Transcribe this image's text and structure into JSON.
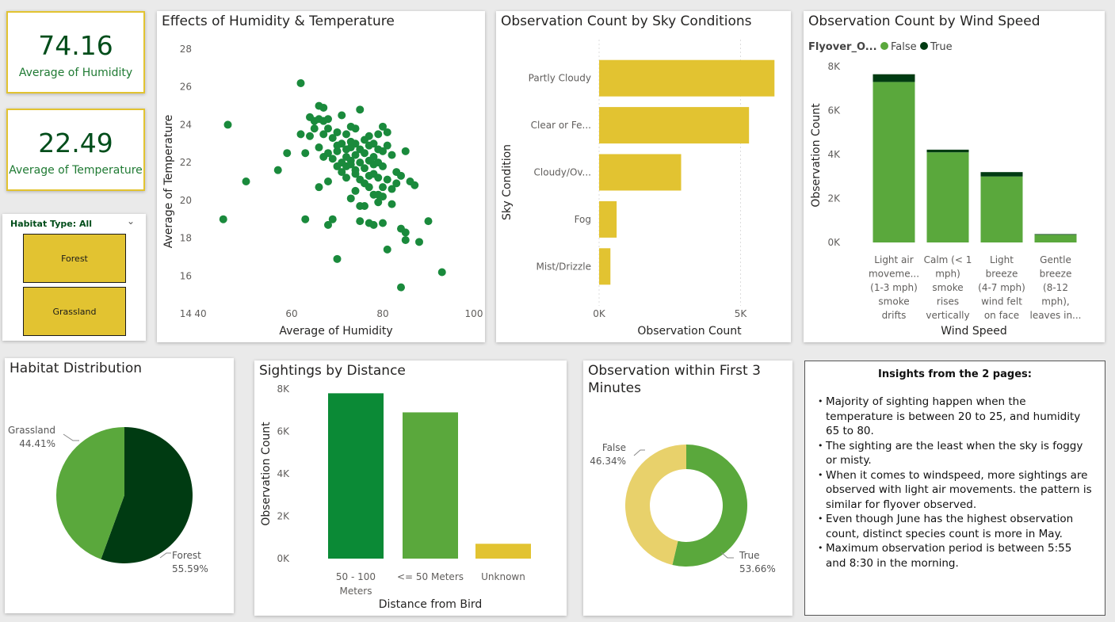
{
  "kpis": [
    {
      "value": "74.16",
      "label": "Average of Humidity"
    },
    {
      "value": "22.49",
      "label": "Average of Temperature"
    }
  ],
  "slicer": {
    "title": "Habitat Type: All",
    "options": [
      "Forest",
      "Grassland"
    ]
  },
  "colors": {
    "yellow": "#e2c331",
    "green_light": "#5aa83c",
    "green_dark": "#003b12",
    "green_mid": "#0b8a36",
    "scatter": "#1a8a3c",
    "yellow_light": "#e8d16b"
  },
  "insights": {
    "title": "Insights from the 2 pages:",
    "items": [
      "Majority of sighting happen when the temperature is between 20 to 25, and humidity 65 to 80.",
      "The sighting are the least when the sky is foggy or misty.",
      "When it comes to windspeed, more sightings are observed with light air movements. the pattern is similar for flyover observed.",
      "Even though June has the highest observation count, distinct species count is more in May.",
      "Maximum observation period is between 5:55 and 8:30 in the morning."
    ]
  },
  "chart_data": [
    {
      "id": "scatter",
      "type": "scatter",
      "title": "Effects of Humidity & Temperature",
      "xlabel": "Average of Humidity",
      "ylabel": "Average of Temperature",
      "xlim": [
        40,
        100
      ],
      "ylim": [
        14,
        28
      ],
      "xticks": [
        "40",
        "60",
        "80",
        "100"
      ],
      "yticks": [
        "14",
        "16",
        "18",
        "20",
        "22",
        "24",
        "26",
        "28"
      ],
      "points": [
        [
          46,
          24
        ],
        [
          45,
          19
        ],
        [
          50,
          21
        ],
        [
          57,
          21.6
        ],
        [
          59,
          22.5
        ],
        [
          62,
          26.2
        ],
        [
          62,
          23.5
        ],
        [
          63,
          22.5
        ],
        [
          63,
          19
        ],
        [
          64,
          23.4
        ],
        [
          64,
          24.4
        ],
        [
          65,
          24.2
        ],
        [
          65,
          23.8
        ],
        [
          66,
          24.3
        ],
        [
          66,
          25
        ],
        [
          67,
          24.9
        ],
        [
          67,
          24.2
        ],
        [
          67,
          23.5
        ],
        [
          66,
          22.8
        ],
        [
          68,
          23.8
        ],
        [
          68,
          24.3
        ],
        [
          68,
          22.5
        ],
        [
          69,
          23.3
        ],
        [
          69,
          22.2
        ],
        [
          70,
          23.6
        ],
        [
          70,
          22.6
        ],
        [
          71,
          24.5
        ],
        [
          71,
          23
        ],
        [
          71,
          22
        ],
        [
          72,
          23.5
        ],
        [
          72,
          22.3
        ],
        [
          72,
          21.8
        ],
        [
          73,
          23.9
        ],
        [
          73,
          22.8
        ],
        [
          73,
          22.1
        ],
        [
          74,
          23.8
        ],
        [
          74,
          23
        ],
        [
          74,
          22.4
        ],
        [
          74,
          21.6
        ],
        [
          75,
          24.8
        ],
        [
          75,
          22.7
        ],
        [
          75,
          22
        ],
        [
          76,
          23.2
        ],
        [
          76,
          22.5
        ],
        [
          76,
          21.7
        ],
        [
          77,
          22.9
        ],
        [
          77,
          22.1
        ],
        [
          77,
          21.3
        ],
        [
          78,
          23
        ],
        [
          78,
          22.3
        ],
        [
          78,
          21.4
        ],
        [
          79,
          23.5
        ],
        [
          79,
          22
        ],
        [
          79,
          21.2
        ],
        [
          80,
          22.6
        ],
        [
          80,
          21.8
        ],
        [
          80,
          23.9
        ],
        [
          81,
          23.6
        ],
        [
          81,
          21.1
        ],
        [
          82,
          22.4
        ],
        [
          83,
          21.5
        ],
        [
          82,
          20.6
        ],
        [
          84,
          21.3
        ],
        [
          85,
          22.6
        ],
        [
          86,
          21
        ],
        [
          87,
          20.8
        ],
        [
          73,
          20.1
        ],
        [
          74,
          20.5
        ],
        [
          75,
          19.7
        ],
        [
          76,
          19.7
        ],
        [
          77,
          20.7
        ],
        [
          78,
          20.3
        ],
        [
          79,
          19.9
        ],
        [
          80,
          20.2
        ],
        [
          75,
          18.9
        ],
        [
          77,
          18.8
        ],
        [
          78,
          18.7
        ],
        [
          80,
          18.8
        ],
        [
          82,
          19.8
        ],
        [
          84,
          18.5
        ],
        [
          85,
          18.3
        ],
        [
          88,
          17.8
        ],
        [
          85,
          17.9
        ],
        [
          81,
          17.4
        ],
        [
          70,
          16.9
        ],
        [
          84,
          15.4
        ],
        [
          93,
          16.2
        ],
        [
          90,
          18.9
        ],
        [
          68,
          18.7
        ],
        [
          69,
          19
        ],
        [
          66,
          20.7
        ],
        [
          70,
          21.8
        ],
        [
          71,
          21.5
        ],
        [
          72,
          21.2
        ],
        [
          73,
          21.9
        ],
        [
          74,
          21.4
        ],
        [
          76,
          20.9
        ],
        [
          78,
          21.9
        ],
        [
          79,
          20.3
        ],
        [
          80,
          20.7
        ],
        [
          67,
          22.3
        ],
        [
          68,
          21
        ],
        [
          70,
          22.9
        ],
        [
          72,
          22.7
        ],
        [
          73,
          23.1
        ],
        [
          75,
          21.1
        ],
        [
          77,
          23.4
        ],
        [
          79,
          22.7
        ],
        [
          81,
          22.9
        ],
        [
          83,
          20.9
        ]
      ]
    },
    {
      "id": "sky",
      "type": "bar",
      "orientation": "horizontal",
      "title": "Observation Count by Sky Conditions",
      "xlabel": "Observation Count",
      "ylabel": "Sky Condition",
      "categories": [
        "Partly Cloudy",
        "Clear or Fe...",
        "Cloudy/Ov...",
        "Fog",
        "Mist/Drizzle"
      ],
      "values": [
        6200,
        5300,
        2900,
        620,
        400
      ],
      "xlim": [
        0,
        6500
      ],
      "xticks": [
        "0K",
        "5K"
      ]
    },
    {
      "id": "wind",
      "type": "bar",
      "stacked": true,
      "title": "Observation Count by Wind Speed",
      "xlabel": "Wind Speed",
      "ylabel": "Observation Count",
      "legend_title": "Flyover_O...",
      "legend_position": "top-left",
      "categories": [
        [
          "Light air",
          "moveme...",
          "(1-3 mph)",
          "smoke",
          "drifts"
        ],
        [
          "Calm (< 1",
          "mph)",
          "smoke",
          "rises",
          "vertically"
        ],
        [
          "Light",
          "breeze",
          "(4-7 mph)",
          "wind felt",
          "on face"
        ],
        [
          "Gentle",
          "breeze",
          "(8-12",
          "mph),",
          "leaves in..."
        ]
      ],
      "series": [
        {
          "name": "False",
          "values": [
            7300,
            4100,
            3000,
            350
          ]
        },
        {
          "name": "True",
          "values": [
            350,
            120,
            200,
            30
          ]
        }
      ],
      "ylim": [
        0,
        8000
      ],
      "yticks": [
        "0K",
        "2K",
        "4K",
        "6K",
        "8K"
      ]
    },
    {
      "id": "habitat",
      "type": "pie",
      "title": "Habitat Distribution",
      "slices": [
        {
          "label": "Forest",
          "value": 55.59,
          "pct": "55.59%"
        },
        {
          "label": "Grassland",
          "value": 44.41,
          "pct": "44.41%"
        }
      ]
    },
    {
      "id": "distance",
      "type": "bar",
      "title": "Sightings by Distance",
      "xlabel": "Distance from Bird",
      "ylabel": "Observation Count",
      "categories": [
        [
          "50 - 100",
          "Meters"
        ],
        [
          "<= 50 Meters"
        ],
        [
          "Unknown"
        ]
      ],
      "values": [
        7800,
        6900,
        700
      ],
      "ylim": [
        0,
        8000
      ],
      "yticks": [
        "0K",
        "2K",
        "4K",
        "6K",
        "8K"
      ]
    },
    {
      "id": "first3",
      "type": "pie",
      "donut": true,
      "title": "Observation within First 3 Minutes",
      "slices": [
        {
          "label": "True",
          "value": 53.66,
          "pct": "53.66%"
        },
        {
          "label": "False",
          "value": 46.34,
          "pct": "46.34%"
        }
      ]
    }
  ]
}
